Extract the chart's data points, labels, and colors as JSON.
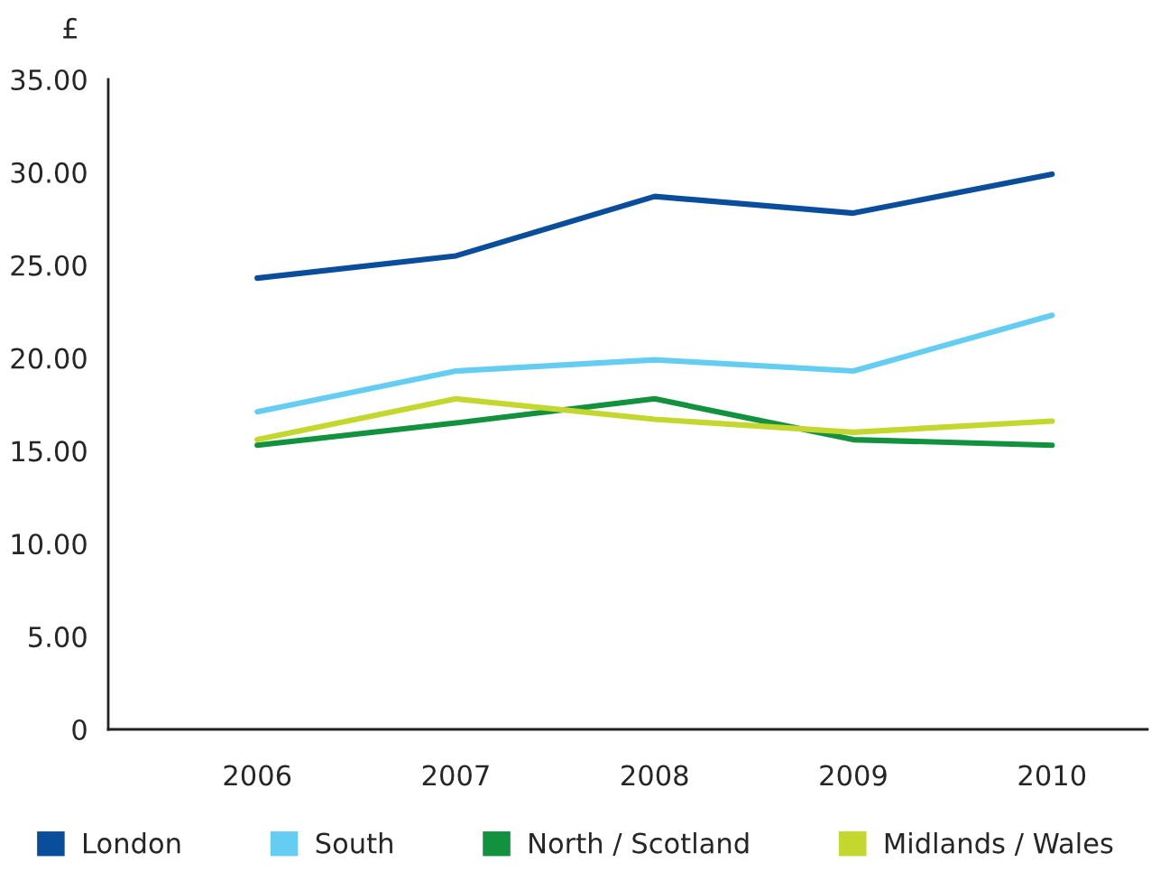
{
  "chart_data": {
    "type": "line",
    "ylabel": "£",
    "categories": [
      "2006",
      "2007",
      "2008",
      "2009",
      "2010"
    ],
    "series": [
      {
        "name": "London",
        "color": "#0a4e9b",
        "values": [
          24.3,
          25.5,
          28.7,
          27.8,
          29.9
        ]
      },
      {
        "name": "South",
        "color": "#66cdf2",
        "values": [
          17.1,
          19.3,
          19.9,
          19.3,
          22.3
        ]
      },
      {
        "name": "North / Scotland",
        "color": "#12913f",
        "values": [
          15.3,
          16.5,
          17.8,
          15.6,
          15.3
        ]
      },
      {
        "name": "Midlands / Wales",
        "color": "#c3d72f",
        "values": [
          15.6,
          17.8,
          16.7,
          16.0,
          16.6
        ]
      }
    ],
    "ylim": [
      0,
      35
    ],
    "yticks": [
      0,
      {
        "value": 5,
        "label": "5.00"
      },
      {
        "value": 10,
        "label": "10.00"
      },
      {
        "value": 15,
        "label": "15.00"
      },
      {
        "value": 20,
        "label": "20.00"
      },
      {
        "value": 25,
        "label": "25.00"
      },
      {
        "value": 30,
        "label": "30.00"
      },
      {
        "value": 35,
        "label": "35.00"
      }
    ],
    "legend": "bottom"
  }
}
